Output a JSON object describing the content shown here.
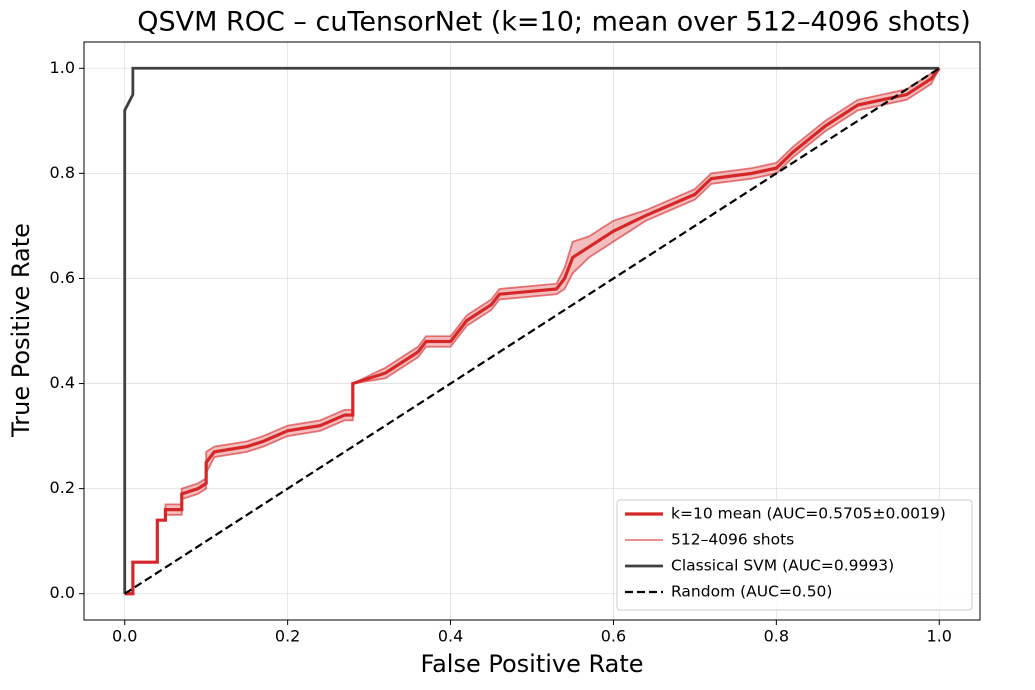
{
  "chart_data": {
    "type": "line",
    "title": "QSVM ROC – cuTensorNet (k=10; mean over 512–4096 shots)",
    "xlabel": "False Positive Rate",
    "ylabel": "True Positive Rate",
    "xlim": [
      -0.05,
      1.05
    ],
    "ylim": [
      -0.05,
      1.05
    ],
    "xticks": [
      {
        "value": 0,
        "label": "0.0"
      },
      0.2,
      0.4,
      0.6,
      0.8,
      {
        "value": 1,
        "label": "1.0"
      }
    ],
    "yticks": [
      {
        "value": 0,
        "label": "0.0"
      },
      0.2,
      0.4,
      0.6,
      0.8,
      {
        "value": 1,
        "label": "1.0"
      }
    ],
    "grid": true,
    "legend": "lower right",
    "series": [
      {
        "name": "k=10 mean (AUC=0.5705±0.0019)",
        "color": "#d62728",
        "linestyle": "solid",
        "x": [
          0,
          0.01,
          0.01,
          0.04,
          0.04,
          0.05,
          0.05,
          0.07,
          0.07,
          0.09,
          0.1,
          0.1,
          0.11,
          0.15,
          0.17,
          0.2,
          0.24,
          0.27,
          0.28,
          0.28,
          0.32,
          0.36,
          0.37,
          0.4,
          0.42,
          0.45,
          0.46,
          0.53,
          0.54,
          0.55,
          0.57,
          0.6,
          0.64,
          0.7,
          0.72,
          0.77,
          0.8,
          0.82,
          0.86,
          0.9,
          0.96,
          0.99,
          1
        ],
        "values": [
          0,
          0,
          0.06,
          0.06,
          0.14,
          0.14,
          0.16,
          0.16,
          0.19,
          0.2,
          0.21,
          0.25,
          0.27,
          0.28,
          0.29,
          0.31,
          0.32,
          0.34,
          0.34,
          0.4,
          0.42,
          0.46,
          0.48,
          0.48,
          0.52,
          0.55,
          0.57,
          0.58,
          0.6,
          0.64,
          0.66,
          0.69,
          0.72,
          0.76,
          0.79,
          0.8,
          0.81,
          0.84,
          0.89,
          0.93,
          0.95,
          0.98,
          1
        ]
      },
      {
        "name": "512–4096 shots",
        "color": "#d62728",
        "linestyle": "band",
        "x": [
          0,
          0.01,
          0.01,
          0.04,
          0.04,
          0.05,
          0.05,
          0.07,
          0.07,
          0.09,
          0.1,
          0.1,
          0.11,
          0.15,
          0.17,
          0.2,
          0.24,
          0.27,
          0.28,
          0.28,
          0.32,
          0.36,
          0.37,
          0.4,
          0.42,
          0.45,
          0.46,
          0.53,
          0.54,
          0.55,
          0.57,
          0.6,
          0.64,
          0.7,
          0.72,
          0.77,
          0.8,
          0.82,
          0.86,
          0.9,
          0.96,
          0.99,
          1
        ],
        "high": [
          0,
          0,
          0.06,
          0.06,
          0.14,
          0.14,
          0.17,
          0.17,
          0.2,
          0.21,
          0.22,
          0.27,
          0.28,
          0.29,
          0.3,
          0.32,
          0.33,
          0.35,
          0.35,
          0.4,
          0.43,
          0.47,
          0.49,
          0.49,
          0.53,
          0.56,
          0.58,
          0.59,
          0.62,
          0.67,
          0.68,
          0.71,
          0.73,
          0.77,
          0.8,
          0.81,
          0.82,
          0.85,
          0.9,
          0.94,
          0.96,
          0.99,
          1
        ],
        "low": [
          0,
          0,
          0.06,
          0.06,
          0.14,
          0.14,
          0.15,
          0.15,
          0.18,
          0.19,
          0.2,
          0.23,
          0.26,
          0.27,
          0.28,
          0.3,
          0.31,
          0.33,
          0.33,
          0.4,
          0.41,
          0.45,
          0.47,
          0.47,
          0.51,
          0.54,
          0.56,
          0.57,
          0.58,
          0.61,
          0.64,
          0.67,
          0.71,
          0.75,
          0.78,
          0.79,
          0.8,
          0.83,
          0.88,
          0.92,
          0.94,
          0.97,
          1
        ]
      },
      {
        "name": "Classical SVM (AUC=0.9993)",
        "color": "#404040",
        "linestyle": "solid",
        "x": [
          0,
          0,
          0.01,
          0.01,
          1
        ],
        "values": [
          0,
          0.92,
          0.95,
          1,
          1
        ]
      },
      {
        "name": "Random (AUC=0.50)",
        "color": "#000000",
        "linestyle": "dashed",
        "x": [
          0,
          1
        ],
        "values": [
          0,
          1
        ]
      }
    ]
  }
}
